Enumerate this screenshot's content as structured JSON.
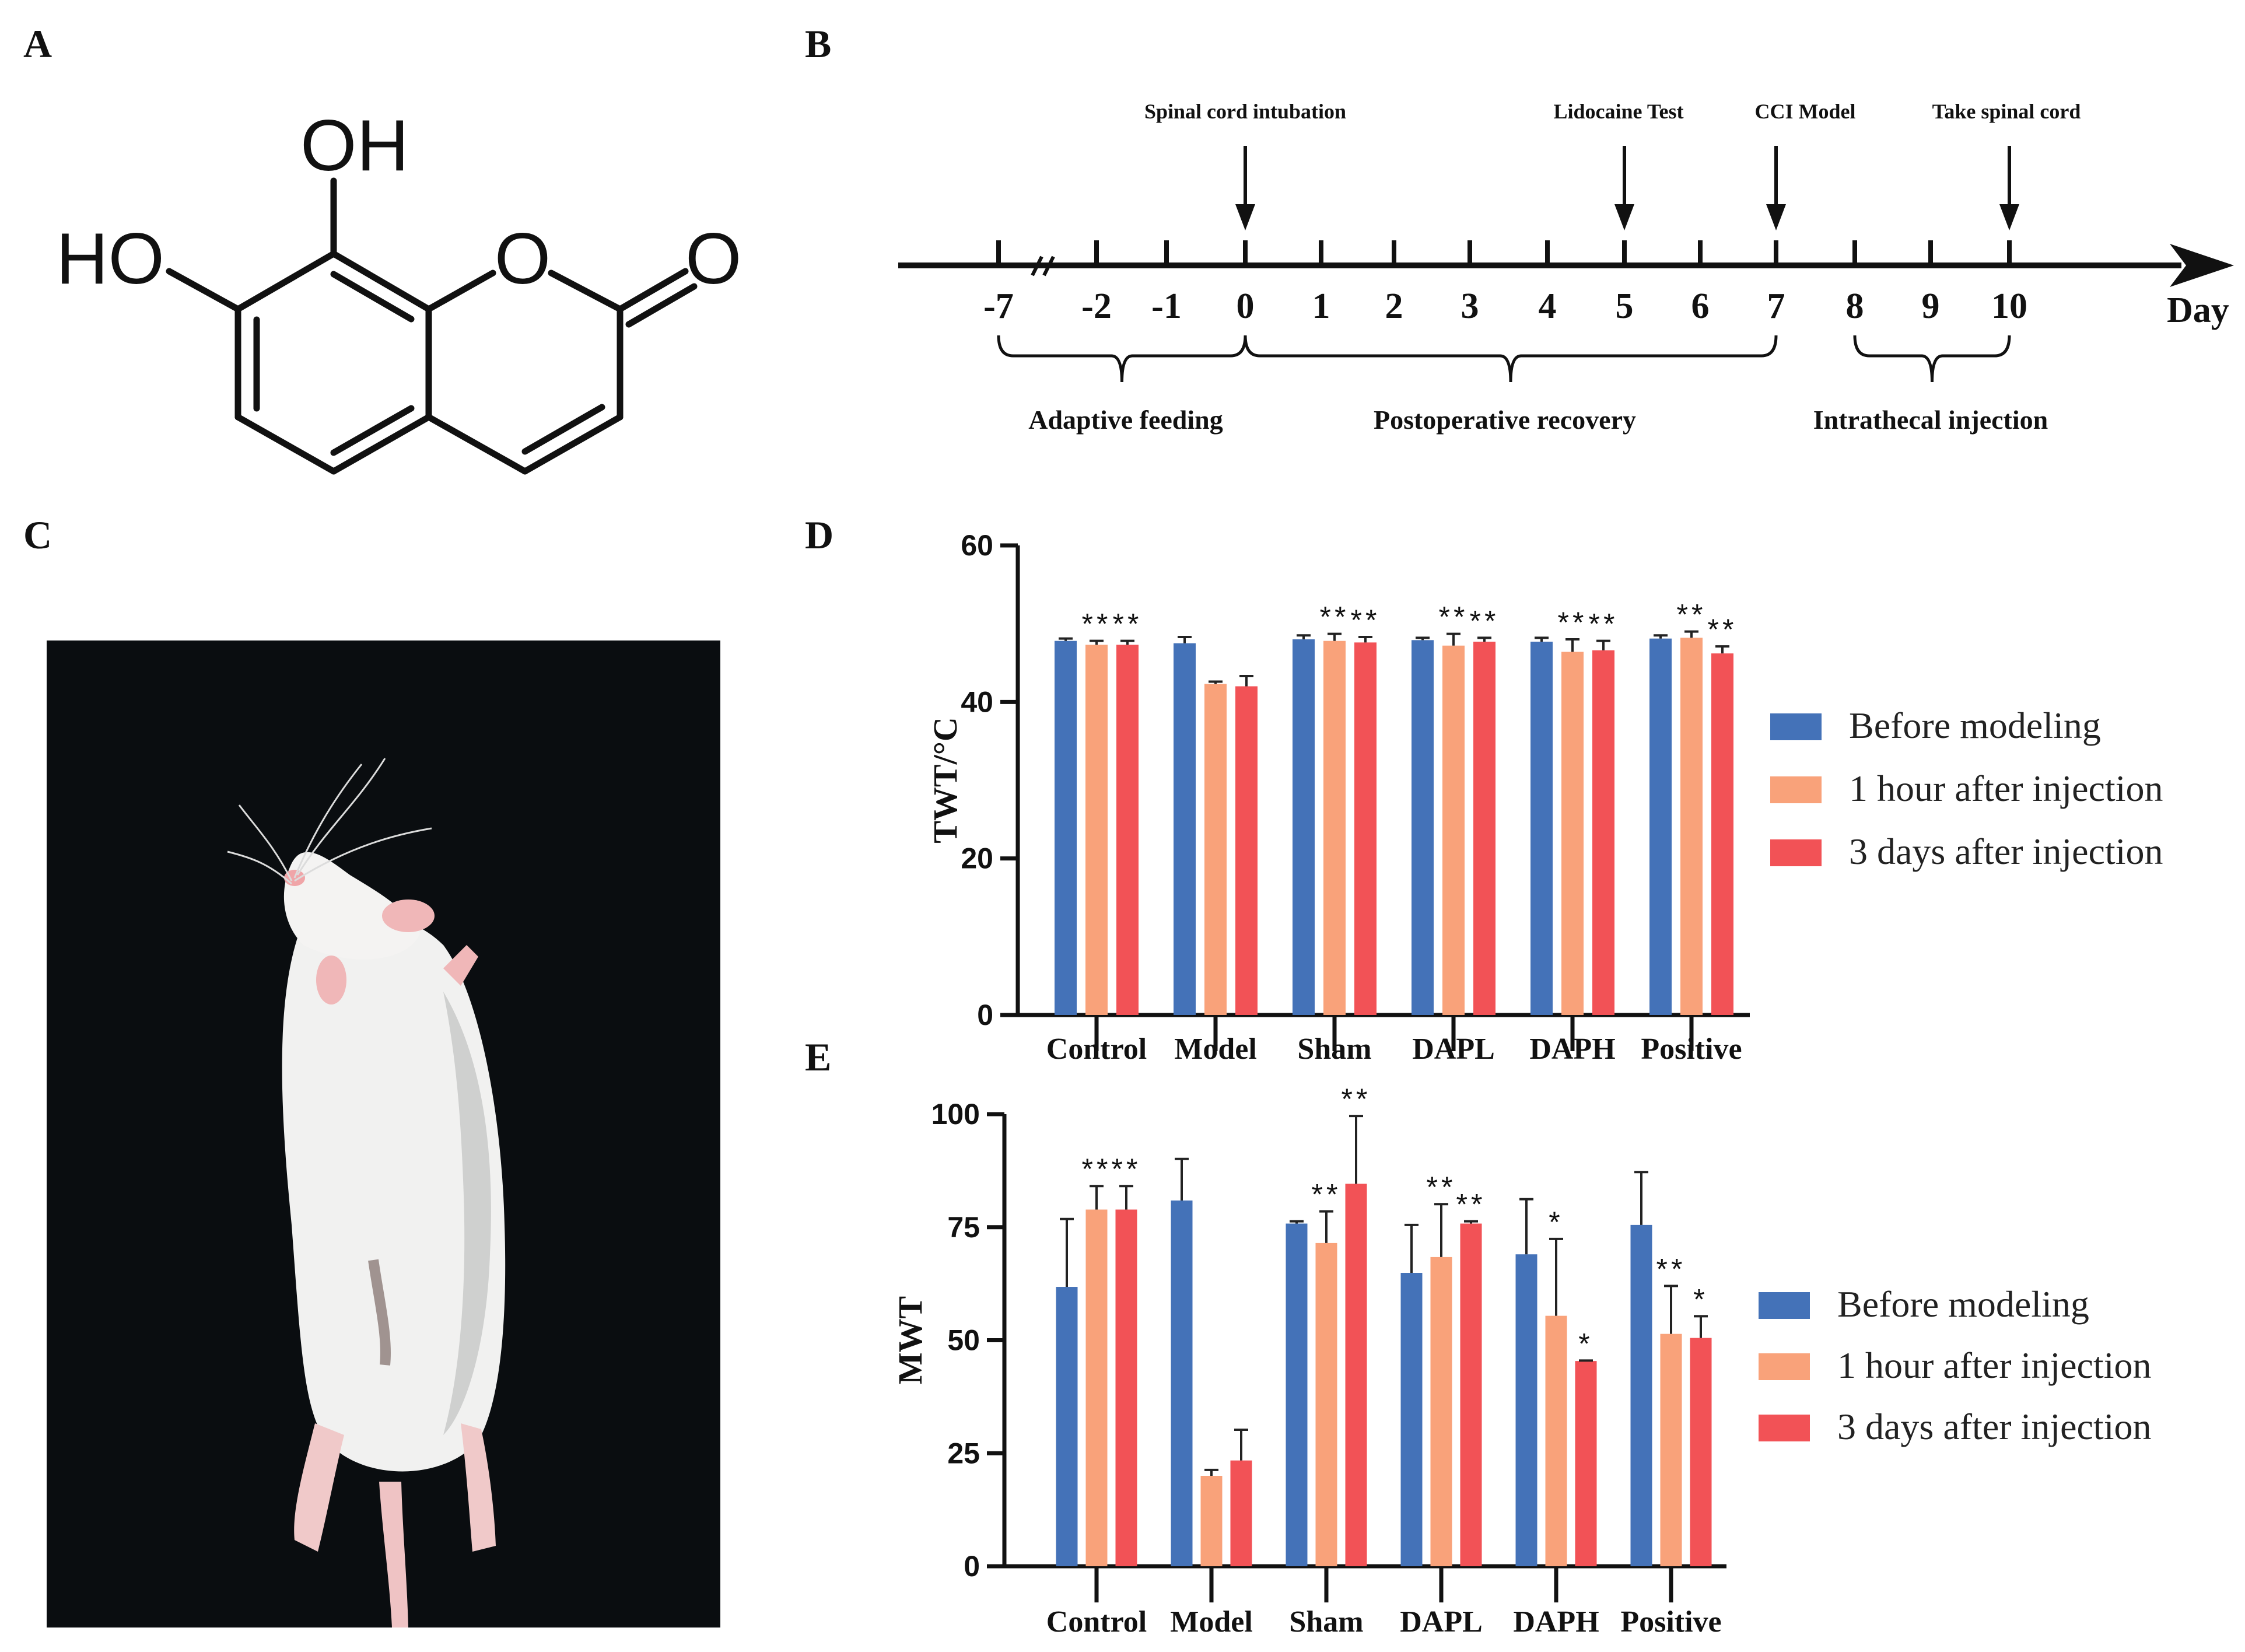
{
  "panels": {
    "a": "A",
    "b": "B",
    "c": "C",
    "d": "D",
    "e": "E"
  },
  "molecule": {
    "oh_top": "OH",
    "ho_left": "HO",
    "ring_o": "O",
    "carbonyl_o": "O"
  },
  "timeline": {
    "days": [
      "-7",
      "-2",
      "-1",
      "0",
      "1",
      "2",
      "3",
      "4",
      "5",
      "6",
      "7",
      "8",
      "9",
      "10"
    ],
    "axis_label": "Day",
    "events": [
      "Spinal cord intubation",
      "Lidocaine Test",
      "CCI Model",
      "Take spinal cord"
    ],
    "phases": [
      "Adaptive feeding",
      "Postoperative recovery",
      "Intrathecal injection"
    ]
  },
  "photo": {
    "subject": "white rat photographed from above on black background"
  },
  "colors": {
    "before": "#4472b8",
    "one_hour": "#f9a27a",
    "three_days": "#f25256"
  },
  "chart_data": [
    {
      "type": "bar",
      "panel": "D",
      "ylabel": "TWT/°C",
      "ylim": [
        0,
        60
      ],
      "yticks": [
        0,
        20,
        40,
        60
      ],
      "categories": [
        "Control",
        "Model",
        "Sham",
        "DAPL",
        "DAPH",
        "Positive"
      ],
      "series": [
        {
          "name": "Before modeling",
          "values": [
            47.8,
            47.5,
            48.0,
            47.9,
            47.7,
            48.1
          ],
          "errors": [
            0.3,
            0.8,
            0.5,
            0.3,
            0.5,
            0.4
          ]
        },
        {
          "name": "1 hour after injection",
          "values": [
            47.3,
            42.3,
            47.8,
            47.2,
            46.4,
            48.2
          ],
          "errors": [
            0.5,
            0.3,
            0.9,
            1.5,
            1.6,
            0.8
          ]
        },
        {
          "name": "3 days after injection",
          "values": [
            47.3,
            42.0,
            47.6,
            47.7,
            46.6,
            46.2
          ],
          "errors": [
            0.5,
            1.3,
            0.7,
            0.5,
            1.2,
            0.9
          ]
        }
      ],
      "significance": [
        [
          "",
          "**",
          "**"
        ],
        [
          "",
          "",
          ""
        ],
        [
          "",
          "**",
          "**"
        ],
        [
          "",
          "**",
          "**"
        ],
        [
          "",
          "**",
          "**"
        ],
        [
          "",
          "**",
          "**"
        ]
      ],
      "legend_position": "right"
    },
    {
      "type": "bar",
      "panel": "E",
      "ylabel": "MWT",
      "ylim": [
        0,
        100
      ],
      "yticks": [
        0,
        25,
        50,
        75,
        100
      ],
      "categories": [
        "Control",
        "Model",
        "Sham",
        "DAPL",
        "DAPH",
        "Positive"
      ],
      "series": [
        {
          "name": "Before modeling",
          "values": [
            61.8,
            80.9,
            75.8,
            64.9,
            69.0,
            75.5
          ],
          "errors": [
            15.0,
            9.2,
            0.5,
            10.6,
            12.2,
            11.7
          ]
        },
        {
          "name": "1 hour after injection",
          "values": [
            78.9,
            20.0,
            71.5,
            68.4,
            55.4,
            51.4
          ],
          "errors": [
            5.2,
            1.3,
            7.0,
            11.7,
            17.0,
            10.6
          ]
        },
        {
          "name": "3 days after injection",
          "values": [
            78.9,
            23.4,
            84.6,
            75.8,
            45.4,
            50.5
          ],
          "errors": [
            5.2,
            6.8,
            15.0,
            0.5,
            0.1,
            4.8
          ]
        }
      ],
      "significance": [
        [
          "",
          "**",
          "**"
        ],
        [
          "",
          "",
          ""
        ],
        [
          "",
          "**",
          "**"
        ],
        [
          "",
          "**",
          "**"
        ],
        [
          "",
          "*",
          "*"
        ],
        [
          "",
          "**",
          "*"
        ]
      ],
      "legend_position": "right"
    }
  ]
}
